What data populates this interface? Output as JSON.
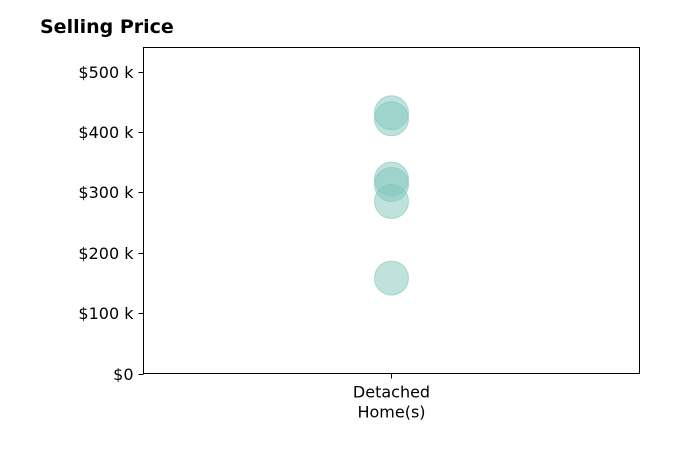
{
  "chart_data": {
    "type": "scatter",
    "title": "Selling Price",
    "categories": [
      "Detached Home(s)"
    ],
    "category_lines": [
      [
        "Detached",
        "Home(s)"
      ]
    ],
    "yticks": [
      0,
      100000,
      200000,
      300000,
      400000,
      500000
    ],
    "ytick_labels": [
      "$0",
      "$100 k",
      "$200 k",
      "$300 k",
      "$400 k",
      "$500 k"
    ],
    "ylim": [
      0,
      540000
    ],
    "series": [
      {
        "category": "Detached Home(s)",
        "values": [
          432000,
          422000,
          322000,
          313000,
          285000,
          158000
        ]
      }
    ],
    "marker_color": "#7fc6bc",
    "grid": false,
    "legend": "none"
  }
}
